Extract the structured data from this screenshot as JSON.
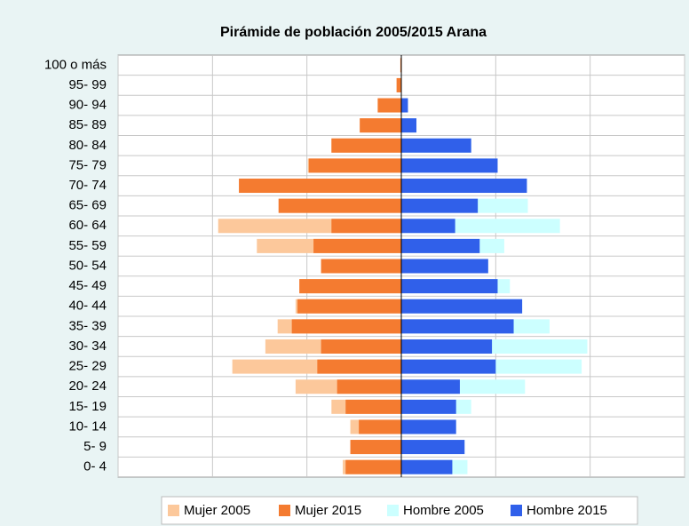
{
  "chart_data": {
    "type": "pyramid",
    "title": "Pirámide de población 2005/2015 Arana",
    "categories": [
      "100 o más",
      "95- 99",
      "90- 94",
      "85- 89",
      "80- 84",
      "75- 79",
      "70- 74",
      "65- 69",
      "60- 64",
      "55- 59",
      "50- 54",
      "45- 49",
      "40- 44",
      "35- 39",
      "30- 34",
      "25- 29",
      "20- 24",
      "15- 19",
      "10- 14",
      "5- 9",
      "0- 4"
    ],
    "series": [
      {
        "name": "Mujer 2005",
        "color": "#fcc89b",
        "values": [
          -1,
          -5,
          -25,
          -44,
          -74,
          -99,
          -172,
          -130,
          -194,
          -153,
          -85,
          -108,
          -112,
          -131,
          -144,
          -179,
          -112,
          -74,
          -54,
          -54,
          -62
        ]
      },
      {
        "name": "Mujer 2015",
        "color": "#f47b30",
        "values": [
          -1,
          -5,
          -25,
          -44,
          -74,
          -98,
          -172,
          -130,
          -74,
          -93,
          -85,
          -108,
          -110,
          -116,
          -85,
          -89,
          -68,
          -59,
          -45,
          -54,
          -59
        ]
      },
      {
        "name": "Hombre 2005",
        "color": "#ccffff",
        "values": [
          0,
          0,
          7,
          16,
          74,
          102,
          133,
          134,
          168,
          109,
          92,
          115,
          128,
          157,
          197,
          191,
          131,
          74,
          58,
          67,
          70
        ]
      },
      {
        "name": "Hombre 2015",
        "color": "#3060ea",
        "values": [
          0,
          0,
          7,
          16,
          74,
          102,
          133,
          81,
          57,
          83,
          92,
          102,
          128,
          119,
          96,
          100,
          62,
          58,
          58,
          67,
          54
        ]
      }
    ],
    "xlim": [
      -300,
      300
    ],
    "xticks": [
      -300,
      -200,
      -100,
      0,
      100,
      200,
      300
    ],
    "grid": true
  }
}
